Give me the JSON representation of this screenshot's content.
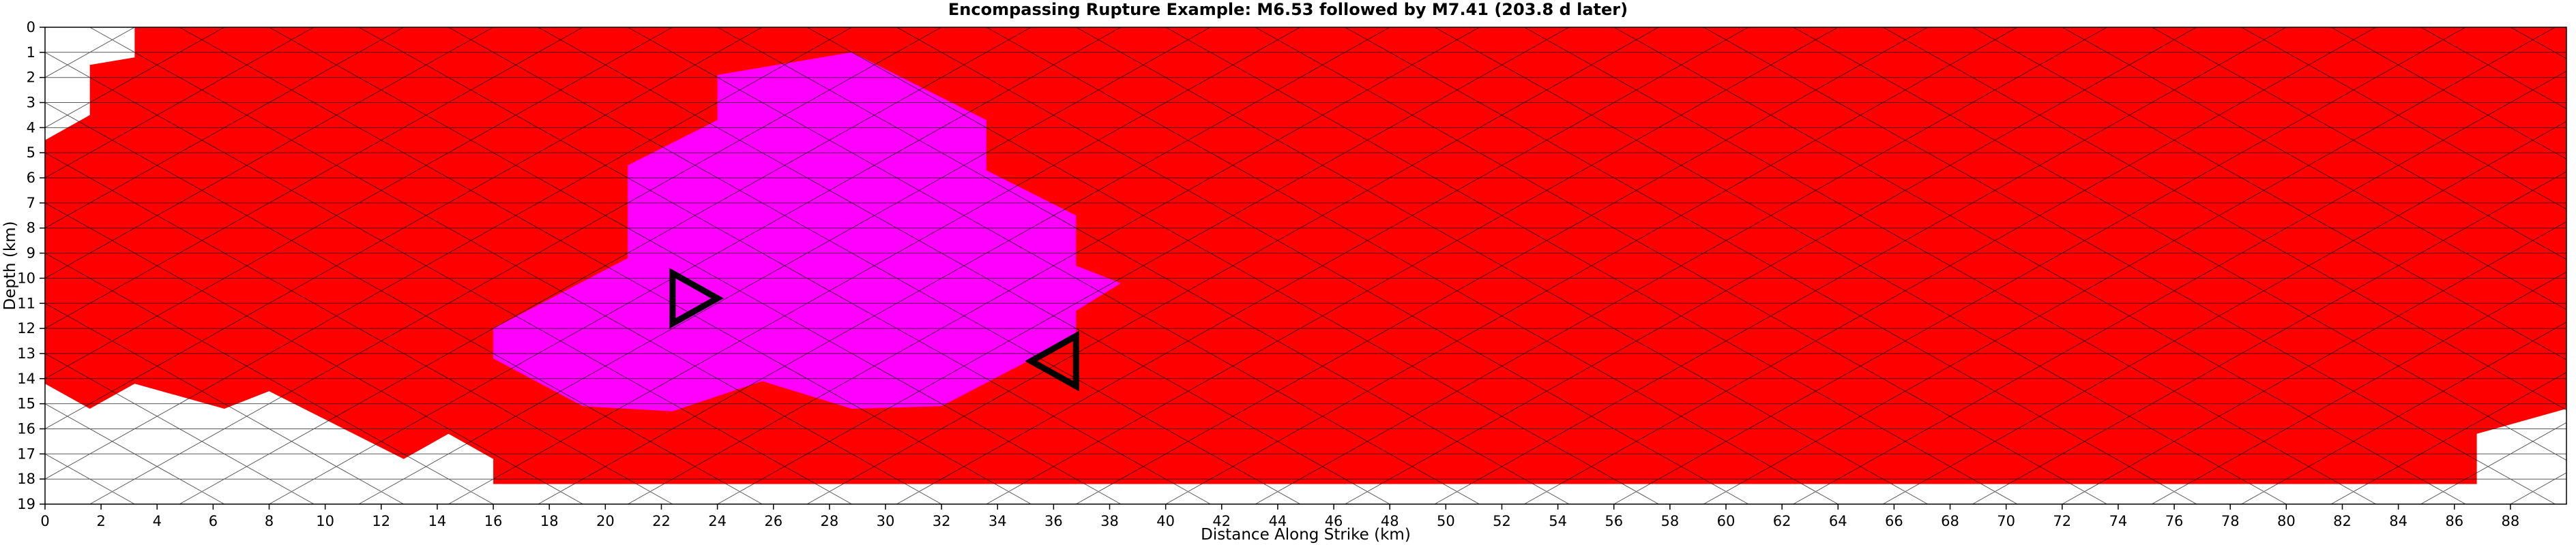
{
  "chart_data": {
    "type": "heatmap",
    "title": "Encompassing Rupture Example: M6.53 followed by M7.41 (203.8 d later)",
    "xlabel": "Distance Along Strike (km)",
    "ylabel": "Depth (km)",
    "xlim": [
      0,
      90
    ],
    "ylim": [
      0,
      19
    ],
    "x_ticks": [
      0,
      2,
      4,
      6,
      8,
      10,
      12,
      14,
      16,
      18,
      20,
      22,
      24,
      26,
      28,
      30,
      32,
      34,
      36,
      38,
      40,
      42,
      44,
      46,
      48,
      50,
      52,
      54,
      56,
      58,
      60,
      62,
      64,
      66,
      68,
      70,
      72,
      74,
      76,
      78,
      80,
      82,
      84,
      86,
      88
    ],
    "y_ticks": [
      0,
      1,
      2,
      3,
      4,
      5,
      6,
      7,
      8,
      9,
      10,
      11,
      12,
      13,
      14,
      15,
      16,
      17,
      18,
      19
    ],
    "y_inverted": true,
    "mesh": "triangular",
    "colors": {
      "encompassing_rupture": "#ff0000",
      "first_rupture": "#ff00ff",
      "no_rupture": "#ffffff",
      "edge": "#000000",
      "empty_edge": "#a0a0a0",
      "hypocenter_marker": "#000000"
    },
    "encompassing_rupture_region": [
      [
        3.2,
        0
      ],
      [
        90,
        0
      ],
      [
        90,
        15.2
      ],
      [
        86.8,
        16.2
      ],
      [
        86.8,
        18.2
      ],
      [
        16,
        18.2
      ],
      [
        16,
        17.2
      ],
      [
        14.4,
        16.2
      ],
      [
        12.8,
        17.2
      ],
      [
        8,
        14.5
      ],
      [
        6.4,
        15.2
      ],
      [
        3.2,
        14.2
      ],
      [
        1.6,
        15.2
      ],
      [
        0,
        14.2
      ],
      [
        0,
        4.5
      ],
      [
        1.6,
        3.5
      ],
      [
        1.6,
        1.5
      ],
      [
        3.2,
        1.2
      ]
    ],
    "first_rupture_region": [
      [
        28.8,
        1
      ],
      [
        33.6,
        3.7
      ],
      [
        33.6,
        5.7
      ],
      [
        36.8,
        7.5
      ],
      [
        36.8,
        9.5
      ],
      [
        38.4,
        10.2
      ],
      [
        36.8,
        11.3
      ],
      [
        36.8,
        12.3
      ],
      [
        32,
        15.1
      ],
      [
        28.8,
        15.2
      ],
      [
        25.6,
        14.1
      ],
      [
        22.4,
        15.3
      ],
      [
        19.2,
        15.1
      ],
      [
        16,
        13.2
      ],
      [
        16,
        12
      ],
      [
        20.8,
        9.2
      ],
      [
        20.8,
        5.5
      ],
      [
        24,
        3.7
      ],
      [
        24,
        1.9
      ]
    ],
    "hypocenter_markers": [
      {
        "x": [
          22.4,
          22.4,
          24.0
        ],
        "y": [
          9.8,
          11.8,
          10.8
        ]
      },
      {
        "x": [
          36.8,
          36.8,
          35.2
        ],
        "y": [
          12.3,
          14.3,
          13.3
        ]
      }
    ]
  }
}
